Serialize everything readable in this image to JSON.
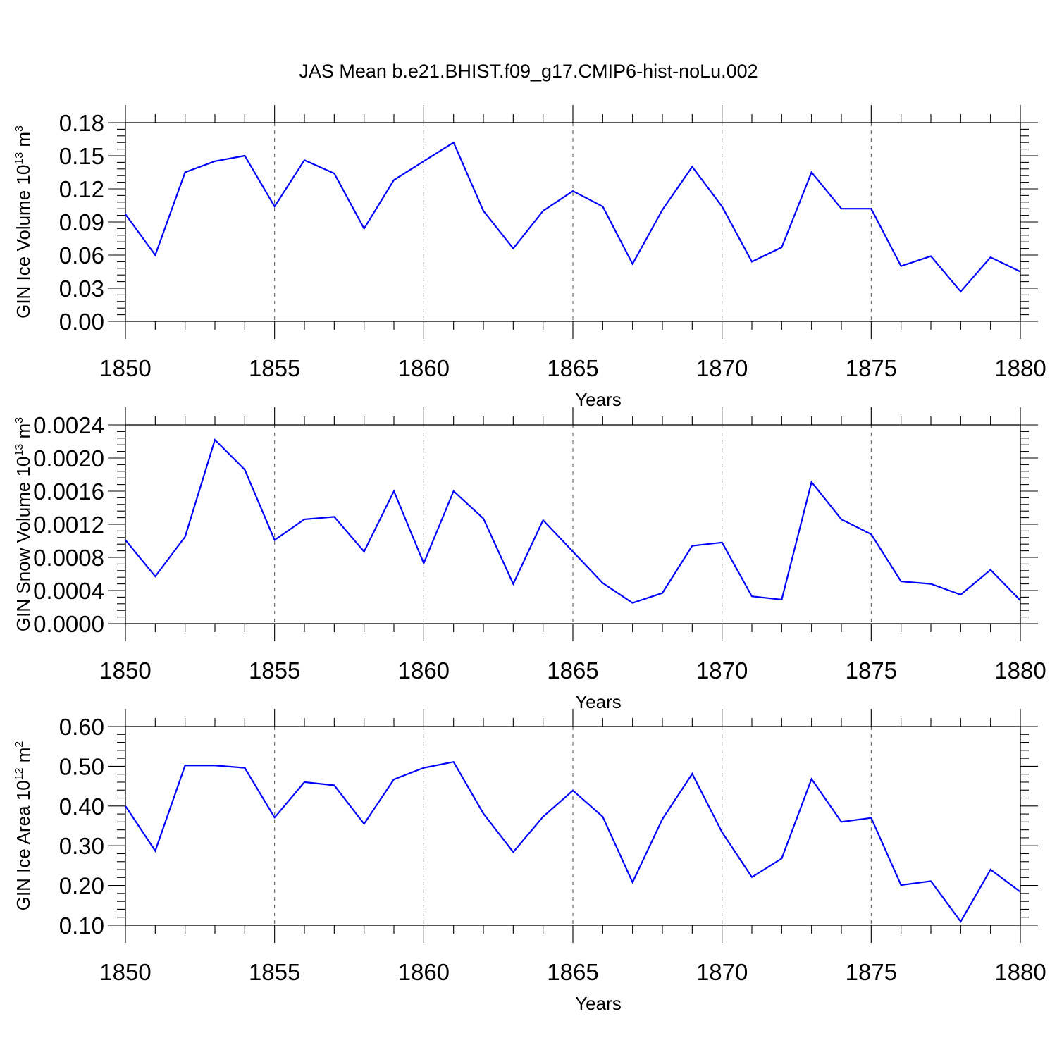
{
  "figure": {
    "title": "JAS Mean b.e21.BHIST.f09_g17.CMIP6-hist-noLu.002"
  },
  "chart_data": [
    {
      "type": "line",
      "xlabel": "Years",
      "ylabel": "GIN Ice Volume 10",
      "ylabel_exp": "13",
      "ylabel_unit": " m",
      "ylabel_unit_exp": "3",
      "x": [
        1850,
        1851,
        1852,
        1853,
        1854,
        1855,
        1856,
        1857,
        1858,
        1859,
        1860,
        1861,
        1862,
        1863,
        1864,
        1865,
        1866,
        1867,
        1868,
        1869,
        1870,
        1871,
        1872,
        1873,
        1874,
        1875,
        1876,
        1877,
        1878,
        1879,
        1880
      ],
      "series": [
        {
          "color": "#0000ff",
          "values": [
            0.097,
            0.06,
            0.135,
            0.145,
            0.15,
            0.104,
            0.146,
            0.134,
            0.084,
            0.128,
            0.145,
            0.162,
            0.1,
            0.066,
            0.1,
            0.118,
            0.104,
            0.052,
            0.101,
            0.14,
            0.104,
            0.054,
            0.067,
            0.135,
            0.102,
            0.102,
            0.05,
            0.059,
            0.027,
            0.058,
            0.045
          ]
        }
      ],
      "xlim": [
        1850,
        1880
      ],
      "ylim": [
        0,
        0.18
      ],
      "xticks": [
        "1850",
        "1855",
        "1860",
        "1865",
        "1870",
        "1875",
        "1880"
      ],
      "yticks": [
        "0.00",
        "0.03",
        "0.06",
        "0.09",
        "0.12",
        "0.15",
        "0.18"
      ],
      "grid": "vertical dashed at major x ticks"
    },
    {
      "type": "line",
      "xlabel": "Years",
      "ylabel": "GIN Snow Volume 10",
      "ylabel_exp": "13",
      "ylabel_unit": " m",
      "ylabel_unit_exp": "3",
      "x": [
        1850,
        1851,
        1852,
        1853,
        1854,
        1855,
        1856,
        1857,
        1858,
        1859,
        1860,
        1861,
        1862,
        1863,
        1864,
        1865,
        1866,
        1867,
        1868,
        1869,
        1870,
        1871,
        1872,
        1873,
        1874,
        1875,
        1876,
        1877,
        1878,
        1879,
        1880
      ],
      "series": [
        {
          "color": "#0000ff",
          "values": [
            0.00101,
            0.00057,
            0.00105,
            0.00222,
            0.00186,
            0.00101,
            0.00126,
            0.00129,
            0.00087,
            0.0016,
            0.00073,
            0.0016,
            0.00127,
            0.00048,
            0.00125,
            0.00087,
            0.00049,
            0.00025,
            0.00037,
            0.00094,
            0.00098,
            0.00033,
            0.00029,
            0.00171,
            0.00126,
            0.00108,
            0.00051,
            0.00048,
            0.00035,
            0.00065,
            0.00028
          ]
        }
      ],
      "xlim": [
        1850,
        1880
      ],
      "ylim": [
        0,
        0.0024
      ],
      "xticks": [
        "1850",
        "1855",
        "1860",
        "1865",
        "1870",
        "1875",
        "1880"
      ],
      "yticks": [
        "0.0000",
        "0.0004",
        "0.0008",
        "0.0012",
        "0.0016",
        "0.0020",
        "0.0024"
      ],
      "grid": "vertical dashed at major x ticks"
    },
    {
      "type": "line",
      "xlabel": "Years",
      "ylabel": "GIN Ice Area 10",
      "ylabel_exp": "12",
      "ylabel_unit": " m",
      "ylabel_unit_exp": "2",
      "x": [
        1850,
        1851,
        1852,
        1853,
        1854,
        1855,
        1856,
        1857,
        1858,
        1859,
        1860,
        1861,
        1862,
        1863,
        1864,
        1865,
        1866,
        1867,
        1868,
        1869,
        1870,
        1871,
        1872,
        1873,
        1874,
        1875,
        1876,
        1877,
        1878,
        1879,
        1880
      ],
      "series": [
        {
          "color": "#0000ff",
          "values": [
            0.4,
            0.287,
            0.502,
            0.502,
            0.496,
            0.371,
            0.46,
            0.452,
            0.355,
            0.467,
            0.496,
            0.511,
            0.381,
            0.284,
            0.373,
            0.439,
            0.373,
            0.208,
            0.367,
            0.481,
            0.334,
            0.221,
            0.268,
            0.468,
            0.36,
            0.37,
            0.201,
            0.211,
            0.109,
            0.24,
            0.184
          ]
        }
      ],
      "xlim": [
        1850,
        1880
      ],
      "ylim": [
        0.1,
        0.6
      ],
      "xticks": [
        "1850",
        "1855",
        "1860",
        "1865",
        "1870",
        "1875",
        "1880"
      ],
      "yticks": [
        "0.10",
        "0.20",
        "0.30",
        "0.40",
        "0.50",
        "0.60"
      ],
      "grid": "vertical dashed at major x ticks"
    }
  ]
}
